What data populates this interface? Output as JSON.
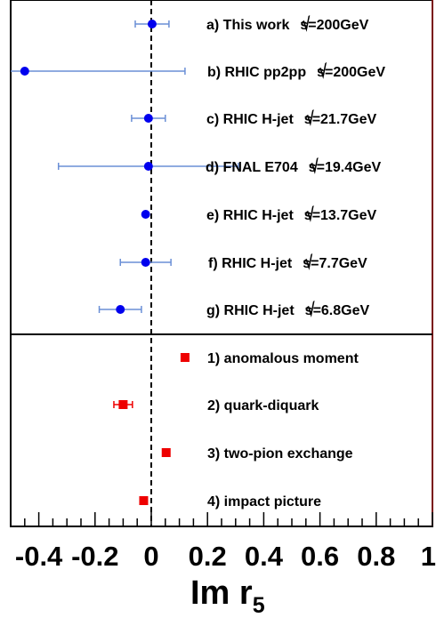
{
  "chart_data": {
    "type": "scatter",
    "xlabel": {
      "main": "Im r",
      "sub": "5"
    },
    "xlim": [
      -0.5,
      1.0
    ],
    "x_tick_labels": [
      "-0.4",
      "-0.2",
      "0",
      "0.2",
      "0.4",
      "0.6",
      "0.8",
      "1"
    ],
    "x_tick_values": [
      -0.4,
      -0.2,
      0.0,
      0.2,
      0.4,
      0.6,
      0.8,
      1.0
    ],
    "reference_line_x": 0.0,
    "series": [
      {
        "group": "measurements",
        "color": "#0000ee",
        "errorbar_color": "#6a8fd6",
        "marker": "circle",
        "points": [
          {
            "label": "a) This work",
            "energy": "=200GeV",
            "x": 0.003,
            "xerr": 0.06
          },
          {
            "label": "b) RHIC pp2pp",
            "energy": "=200GeV",
            "x": -0.45,
            "xerr": 0.57
          },
          {
            "label": "c) RHIC H-jet",
            "energy": "=21.7GeV",
            "x": -0.01,
            "xerr": 0.06
          },
          {
            "label": "d) FNAL E704",
            "energy": "=19.4GeV",
            "x": -0.01,
            "xerr": 0.32
          },
          {
            "label": "e) RHIC H-jet",
            "energy": "=13.7GeV",
            "x": -0.02,
            "xerr": 0.0
          },
          {
            "label": "f) RHIC H-jet",
            "energy": "=7.7GeV",
            "x": -0.02,
            "xerr": 0.09
          },
          {
            "label": "g) RHIC H-jet",
            "energy": "=6.8GeV",
            "x": -0.11,
            "xerr": 0.075
          }
        ]
      },
      {
        "group": "predictions",
        "color": "#ee0000",
        "errorbar_color": "#ee0000",
        "marker": "square",
        "points": [
          {
            "label": "1) anomalous moment",
            "x": 0.12,
            "xerr": 0.0
          },
          {
            "label": "2) quark-diquark",
            "x": -0.1,
            "xerr": 0.033
          },
          {
            "label": "3) two-pion exchange",
            "x": 0.053,
            "xerr": 0.0
          },
          {
            "label": "4) impact picture",
            "x": -0.027,
            "xerr": 0.0
          }
        ]
      }
    ],
    "sqrt_s_symbol": "s"
  }
}
